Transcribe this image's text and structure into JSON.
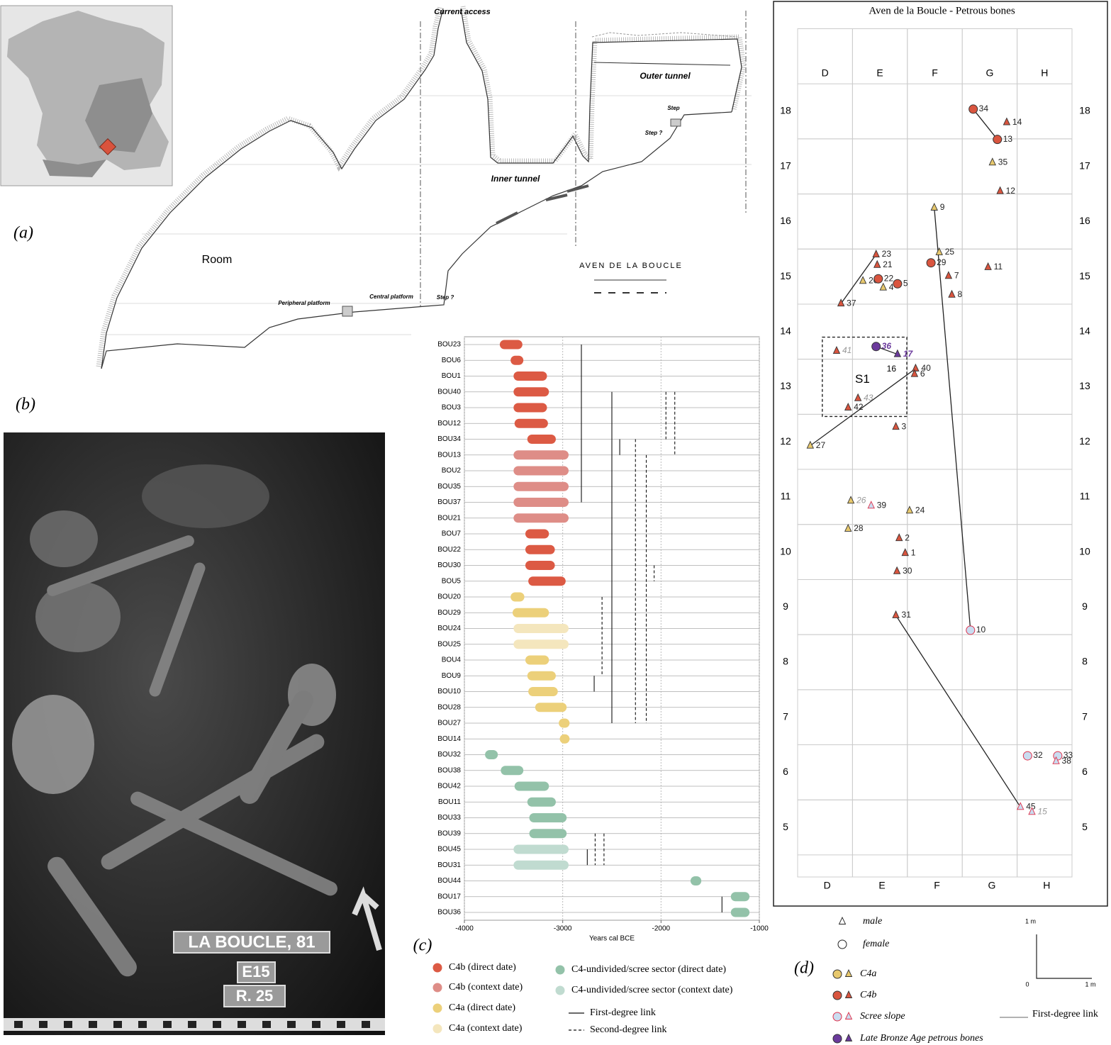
{
  "panel_labels": [
    "(a)",
    "(b)",
    "(c)",
    "(d)"
  ],
  "section": {
    "labels": [
      "Current access",
      "Outer tunnel",
      "Step",
      "Step ?",
      "Inner tunnel",
      "Room",
      "Peripheral platform",
      "Central platform",
      "Step ?",
      "AVEN DE LA BOUCLE"
    ]
  },
  "photo_tags": [
    "LA BOUCLE, 81",
    "E15",
    "R. 25"
  ],
  "chart_data": [
    {
      "type": "range",
      "xlabel": "Years cal BCE",
      "xlim": [
        -4000,
        -1000
      ],
      "xticks": [
        -4000,
        -3000,
        -2000,
        -1000
      ],
      "grid": true,
      "categories": [
        "BOU23",
        "BOU6",
        "BOU1",
        "BOU40",
        "BOU3",
        "BOU12",
        "BOU34",
        "BOU13",
        "BOU2",
        "BOU35",
        "BOU37",
        "BOU21",
        "BOU7",
        "BOU22",
        "BOU30",
        "BOU5",
        "BOU20",
        "BOU29",
        "BOU24",
        "BOU25",
        "BOU4",
        "BOU9",
        "BOU10",
        "BOU28",
        "BOU27",
        "BOU14",
        "BOU32",
        "BOU38",
        "BOU42",
        "BOU11",
        "BOU33",
        "BOU39",
        "BOU45",
        "BOU31",
        "BOU44",
        "BOU17",
        "BOU36"
      ],
      "values": [
        [
          -3640,
          -3410
        ],
        [
          -3530,
          -3400
        ],
        [
          -3500,
          -3160
        ],
        [
          -3500,
          -3140
        ],
        [
          -3500,
          -3160
        ],
        [
          -3490,
          -3150
        ],
        [
          -3360,
          -3070
        ],
        [
          -3500,
          -2940
        ],
        [
          -3500,
          -2940
        ],
        [
          -3500,
          -2940
        ],
        [
          -3500,
          -2940
        ],
        [
          -3500,
          -2940
        ],
        [
          -3380,
          -3140
        ],
        [
          -3380,
          -3080
        ],
        [
          -3380,
          -3080
        ],
        [
          -3350,
          -2970
        ],
        [
          -3530,
          -3390
        ],
        [
          -3510,
          -3140
        ],
        [
          -3500,
          -2940
        ],
        [
          -3500,
          -2940
        ],
        [
          -3380,
          -3140
        ],
        [
          -3360,
          -3070
        ],
        [
          -3350,
          -3050
        ],
        [
          -3280,
          -2960
        ],
        [
          -3040,
          -2930
        ],
        [
          -3030,
          -2930
        ],
        [
          -3790,
          -3660
        ],
        [
          -3630,
          -3400
        ],
        [
          -3490,
          -3140
        ],
        [
          -3360,
          -3070
        ],
        [
          -3340,
          -2960
        ],
        [
          -3340,
          -2960
        ],
        [
          -3500,
          -2940
        ],
        [
          -3500,
          -2940
        ],
        [
          -1700,
          -1590
        ],
        [
          -1290,
          -1100
        ],
        [
          -1290,
          -1100
        ]
      ],
      "groups": [
        "C4b (direct date)",
        "C4b (direct date)",
        "C4b (direct date)",
        "C4b (direct date)",
        "C4b (direct date)",
        "C4b (direct date)",
        "C4b (direct date)",
        "C4b (context date)",
        "C4b (context date)",
        "C4b (context date)",
        "C4b (context date)",
        "C4b (context date)",
        "C4b (direct date)",
        "C4b (direct date)",
        "C4b (direct date)",
        "C4b (direct date)",
        "C4a (direct date)",
        "C4a (direct date)",
        "C4a (context date)",
        "C4a (context date)",
        "C4a (direct date)",
        "C4a (direct date)",
        "C4a (direct date)",
        "C4a (direct date)",
        "C4a (direct date)",
        "C4a (direct date)",
        "C4-undivided/scree sector (direct date)",
        "C4-undivided/scree sector (direct date)",
        "C4-undivided/scree sector (direct date)",
        "C4-undivided/scree sector (direct date)",
        "C4-undivided/scree sector (direct date)",
        "C4-undivided/scree sector (direct date)",
        "C4-undivided/scree sector (context date)",
        "C4-undivided/scree sector (context date)",
        "C4-undivided/scree sector (direct date)",
        "C4-undivided/scree sector (direct date)",
        "C4-undivided/scree sector (direct date)"
      ],
      "series": [
        {
          "name": "C4b (direct date)",
          "color": "#dc5a44"
        },
        {
          "name": "C4b (context date)",
          "color": "#de8d87"
        },
        {
          "name": "C4a (direct date)",
          "color": "#ecd07a"
        },
        {
          "name": "C4a (context date)",
          "color": "#f4e6bd"
        },
        {
          "name": "C4-undivided/scree sector (direct date)",
          "color": "#93c2a9"
        },
        {
          "name": "C4-undivided/scree sector (context date)",
          "color": "#c0dbd0"
        }
      ],
      "links": [
        {
          "name": "First-degree link",
          "style": "solid",
          "values": [
            {
              "x": -2810,
              "rows": [
                "BOU23",
                "BOU37"
              ]
            },
            {
              "x": -2500,
              "rows": [
                "BOU40",
                "BOU27"
              ]
            },
            {
              "x": -2420,
              "rows": [
                "BOU34",
                "BOU13"
              ]
            },
            {
              "x": -2680,
              "rows": [
                "BOU9",
                "BOU10"
              ]
            },
            {
              "x": -2750,
              "rows": [
                "BOU45",
                "BOU31"
              ]
            },
            {
              "x": -1380,
              "rows": [
                "BOU17",
                "BOU36"
              ]
            }
          ]
        },
        {
          "name": "Second-degree link",
          "style": "dashed",
          "values": [
            {
              "x": -1950,
              "rows": [
                "BOU40",
                "BOU34"
              ]
            },
            {
              "x": -1860,
              "rows": [
                "BOU40",
                "BOU13"
              ]
            },
            {
              "x": -2260,
              "rows": [
                "BOU34",
                "BOU27"
              ]
            },
            {
              "x": -2150,
              "rows": [
                "BOU13",
                "BOU27"
              ]
            },
            {
              "x": -2070,
              "rows": [
                "BOU30",
                "BOU5"
              ]
            },
            {
              "x": -2600,
              "rows": [
                "BOU20",
                "BOU9"
              ]
            },
            {
              "x": -2670,
              "rows": [
                "BOU39",
                "BOU31"
              ]
            },
            {
              "x": -2580,
              "rows": [
                "BOU39",
                "BOU31"
              ]
            }
          ]
        }
      ]
    },
    {
      "type": "scatter",
      "title": "Aven de la Boucle - Petrous bones",
      "xlim": [
        0,
        5
      ],
      "ylim": [
        4.1,
        19.5
      ],
      "xticks": [
        {
          "value": 0.5,
          "label": "D"
        },
        {
          "value": 1.5,
          "label": "E"
        },
        {
          "value": 2.5,
          "label": "F"
        },
        {
          "value": 3.5,
          "label": "G"
        },
        {
          "value": 4.5,
          "label": "H"
        }
      ],
      "yticks": [
        5,
        6,
        7,
        8,
        9,
        10,
        11,
        12,
        13,
        14,
        15,
        16,
        17,
        18
      ],
      "grid": true,
      "markers": [
        {
          "name": "male",
          "shape": "triangle"
        },
        {
          "name": "female",
          "shape": "circle"
        }
      ],
      "series": [
        {
          "name": "C4a",
          "color": "#e7c86d",
          "points": [
            {
              "label": "35",
              "x": 3.55,
              "y": 17.07,
              "sex": "male"
            },
            {
              "label": "9",
              "x": 2.49,
              "y": 16.25,
              "sex": "male"
            },
            {
              "label": "25",
              "x": 2.58,
              "y": 15.44,
              "sex": "male"
            },
            {
              "label": "20",
              "x": 1.19,
              "y": 14.92,
              "sex": "male"
            },
            {
              "label": "4",
              "x": 1.56,
              "y": 14.8,
              "sex": "male"
            },
            {
              "label": "27",
              "x": 0.23,
              "y": 11.93,
              "sex": "male"
            },
            {
              "label": "26",
              "x": 0.97,
              "y": 10.93,
              "sex": "male",
              "muted": true
            },
            {
              "label": "24",
              "x": 2.04,
              "y": 10.75,
              "sex": "male"
            },
            {
              "label": "28",
              "x": 0.92,
              "y": 10.42,
              "sex": "male"
            }
          ]
        },
        {
          "name": "C4b",
          "color": "#d9553f",
          "points": [
            {
              "label": "34",
              "x": 3.2,
              "y": 18.04,
              "sex": "female"
            },
            {
              "label": "14",
              "x": 3.81,
              "y": 17.8,
              "sex": "male"
            },
            {
              "label": "13",
              "x": 3.64,
              "y": 17.49,
              "sex": "female"
            },
            {
              "label": "12",
              "x": 3.69,
              "y": 16.55,
              "sex": "male"
            },
            {
              "label": "29",
              "x": 2.43,
              "y": 15.25,
              "sex": "female"
            },
            {
              "label": "11",
              "x": 3.47,
              "y": 15.17,
              "sex": "male"
            },
            {
              "label": "7",
              "x": 2.75,
              "y": 15.01,
              "sex": "male"
            },
            {
              "label": "8",
              "x": 2.81,
              "y": 14.67,
              "sex": "male"
            },
            {
              "label": "23",
              "x": 1.43,
              "y": 15.4,
              "sex": "male"
            },
            {
              "label": "21",
              "x": 1.45,
              "y": 15.21,
              "sex": "male"
            },
            {
              "label": "22",
              "x": 1.47,
              "y": 14.96,
              "sex": "female"
            },
            {
              "label": "5",
              "x": 1.82,
              "y": 14.87,
              "sex": "female"
            },
            {
              "label": "37",
              "x": 0.79,
              "y": 14.51,
              "sex": "male"
            },
            {
              "label": "41",
              "x": 0.71,
              "y": 13.65,
              "sex": "male",
              "muted": true
            },
            {
              "label": "40",
              "x": 2.15,
              "y": 13.33,
              "sex": "male"
            },
            {
              "label": "6",
              "x": 2.13,
              "y": 13.23,
              "sex": "male"
            },
            {
              "label": "43",
              "x": 1.1,
              "y": 12.79,
              "sex": "male",
              "muted": true
            },
            {
              "label": "42",
              "x": 0.92,
              "y": 12.62,
              "sex": "male"
            },
            {
              "label": "3",
              "x": 1.79,
              "y": 12.27,
              "sex": "male"
            },
            {
              "label": "2",
              "x": 1.85,
              "y": 10.25,
              "sex": "male"
            },
            {
              "label": "1",
              "x": 1.96,
              "y": 9.98,
              "sex": "male"
            },
            {
              "label": "30",
              "x": 1.81,
              "y": 9.65,
              "sex": "male"
            },
            {
              "label": "31",
              "x": 1.79,
              "y": 8.85,
              "sex": "male"
            }
          ]
        },
        {
          "name": "Scree slope",
          "color": "#c9dcf0",
          "stroke": "#e0304a",
          "points": [
            {
              "label": "39",
              "x": 1.34,
              "y": 10.84,
              "sex": "male"
            },
            {
              "label": "10",
              "x": 3.15,
              "y": 8.58,
              "sex": "female"
            },
            {
              "label": "32",
              "x": 4.19,
              "y": 6.3,
              "sex": "female"
            },
            {
              "label": "33",
              "x": 4.74,
              "y": 6.3,
              "sex": "female"
            },
            {
              "label": "38",
              "x": 4.71,
              "y": 6.2,
              "sex": "male"
            },
            {
              "label": "45",
              "x": 4.06,
              "y": 5.37,
              "sex": "male"
            },
            {
              "label": "15",
              "x": 4.27,
              "y": 5.28,
              "sex": "male",
              "muted": true
            }
          ]
        },
        {
          "name": "Late Bronze Age petrous bones",
          "color": "#6b3a9c",
          "label_color": "#6b3a9c",
          "points": [
            {
              "label": "36",
              "x": 1.43,
              "y": 13.73,
              "sex": "female"
            },
            {
              "label": "17",
              "x": 1.82,
              "y": 13.59,
              "sex": "male"
            }
          ]
        }
      ],
      "annotations": [
        {
          "text": "16",
          "x": 1.71,
          "y": 13.32
        }
      ],
      "region": {
        "label": "S1",
        "x": [
          0.45,
          1.99
        ],
        "y": [
          12.46,
          13.9
        ]
      },
      "links": {
        "name": "First-degree link",
        "pairs": [
          [
            "34",
            "13"
          ],
          [
            "23",
            "37"
          ],
          [
            "36",
            "17"
          ],
          [
            "27",
            "40"
          ],
          [
            "9",
            "10"
          ],
          [
            "31",
            "45"
          ]
        ]
      },
      "scale_bar": {
        "title": "1 m",
        "start": "0",
        "end": "1 m"
      }
    }
  ]
}
